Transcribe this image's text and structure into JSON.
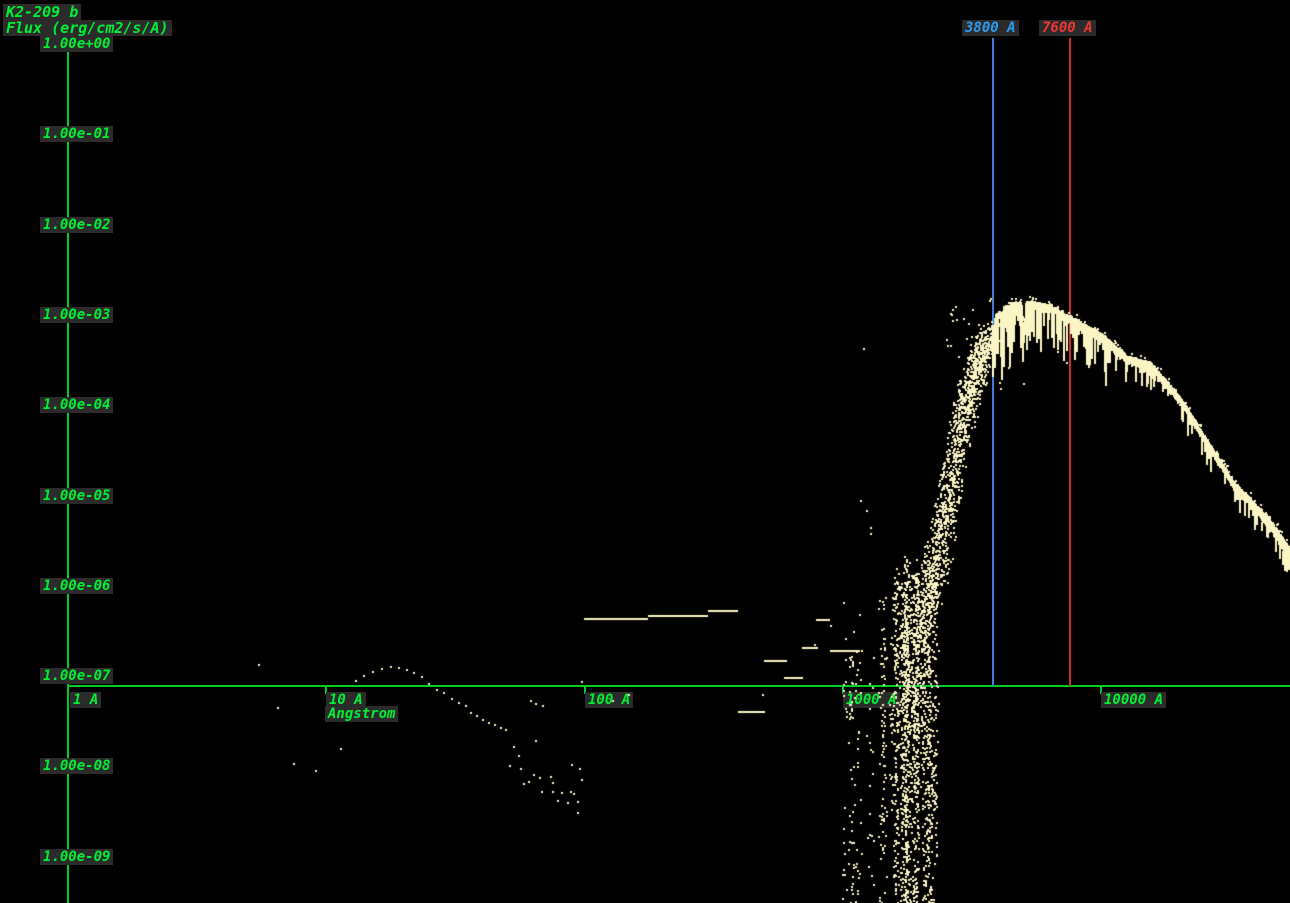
{
  "chart_data": {
    "type": "scatter",
    "title": "K2-209 b",
    "ylabel": "Flux (erg/cm2/s/A)",
    "xlabel": "Angstrom",
    "x_scale": "log",
    "y_scale": "log",
    "x_range_angstrom": [
      1,
      54000
    ],
    "y_range_flux": [
      1e-09,
      1.0
    ],
    "x_ticks": [
      {
        "label": "1 A",
        "value": 1
      },
      {
        "label": "10 A",
        "value": 10
      },
      {
        "label": "100 A",
        "value": 100
      },
      {
        "label": "1000 A",
        "value": 1000
      },
      {
        "label": "10000 A",
        "value": 10000
      }
    ],
    "y_ticks": [
      {
        "label": "1.00e+00",
        "value": 1.0
      },
      {
        "label": "1.00e-01",
        "value": 0.1
      },
      {
        "label": "1.00e-02",
        "value": 0.01
      },
      {
        "label": "1.00e-03",
        "value": 0.001
      },
      {
        "label": "1.00e-04",
        "value": 0.0001
      },
      {
        "label": "1.00e-05",
        "value": 1e-05
      },
      {
        "label": "1.00e-06",
        "value": 1e-06
      },
      {
        "label": "1.00e-07",
        "value": 1e-07
      },
      {
        "label": "1.00e-08",
        "value": 1e-08
      },
      {
        "label": "1.00e-09",
        "value": 1e-09
      }
    ],
    "markers": [
      {
        "label": "3800 A",
        "wavelength": 3800,
        "text_color": "#2d9bf0",
        "line_color": "#3b7fd8"
      },
      {
        "label": "7600 A",
        "wavelength": 7600,
        "text_color": "#ef3535",
        "line_color": "#cf2d2d"
      }
    ],
    "series": [
      {
        "name": "stellar continuum envelope",
        "style": "dense_band",
        "points": [
          [
            1760,
            7.4e-08
          ],
          [
            2010,
            5.3e-07
          ],
          [
            2190,
            1.7e-06
          ],
          [
            2560,
            1.2e-05
          ],
          [
            2870,
            8.2e-05
          ],
          [
            3290,
            0.0003
          ],
          [
            3680,
            0.00057
          ],
          [
            3940,
            0.00094
          ],
          [
            4500,
            0.00125
          ],
          [
            5390,
            0.0013
          ],
          [
            6330,
            0.00117
          ],
          [
            7600,
            0.00088
          ],
          [
            10000,
            0.00057
          ],
          [
            12700,
            0.00032
          ],
          [
            15600,
            0.00027
          ],
          [
            20400,
            0.00011
          ],
          [
            32700,
            1.3e-05
          ],
          [
            45200,
            5e-06
          ],
          [
            54400,
            2.3e-06
          ]
        ]
      },
      {
        "name": "uv line forest",
        "style": "vertical_scatter",
        "wavelength_range": [
          1120,
          2400
        ],
        "flux_range": [
          3e-10,
          2e-06
        ]
      },
      {
        "name": "xray euv points",
        "style": "dots",
        "points": [
          [
            5.5,
            1.26e-07
          ],
          [
            6.5,
            4.2e-08
          ],
          [
            7.5,
            1e-08
          ],
          [
            9.1,
            8.5e-09
          ],
          [
            11.4,
            1.48e-08
          ],
          [
            13.0,
            8.3e-08
          ],
          [
            14.0,
            9.6e-08
          ],
          [
            15.2,
            1.05e-07
          ],
          [
            16.4,
            1.15e-07
          ],
          [
            17.8,
            1.21e-07
          ],
          [
            19.1,
            1.18e-07
          ],
          [
            20.5,
            1.1e-07
          ],
          [
            21.9,
            1.03e-07
          ],
          [
            23.5,
            9.2e-08
          ],
          [
            25.0,
            7.8e-08
          ],
          [
            26.9,
            6.7e-08
          ],
          [
            28.5,
            6.1e-08
          ],
          [
            30.7,
            5.3e-08
          ],
          [
            32.6,
            4.8e-08
          ],
          [
            34.7,
            4.4e-08
          ],
          [
            36.2,
            3.7e-08
          ],
          [
            38.2,
            3.4e-08
          ],
          [
            40.3,
            3.1e-08
          ],
          [
            42.5,
            2.9e-08
          ],
          [
            44.8,
            2.7e-08
          ],
          [
            47.4,
            2.55e-08
          ],
          [
            49.6,
            2.4e-08
          ],
          [
            51.4,
            9.6e-09
          ],
          [
            53.3,
            1.55e-08
          ],
          [
            55.6,
            1.25e-08
          ],
          [
            56.6,
            8.9e-09
          ],
          [
            58.1,
            6.1e-09
          ],
          [
            60.8,
            6.4e-09
          ],
          [
            63.6,
            7.7e-09
          ],
          [
            64.7,
            1.8e-08
          ],
          [
            67.2,
            7e-09
          ],
          [
            68.5,
            4.9e-09
          ],
          [
            74.1,
            7.3e-09
          ],
          [
            75.6,
            6.2e-09
          ],
          [
            75.6,
            5e-09
          ],
          [
            78.9,
            3.9e-09
          ],
          [
            81.8,
            4.8e-09
          ],
          [
            86.1,
            3.7e-09
          ],
          [
            88.4,
            4.9e-09
          ],
          [
            89.2,
            9.9e-09
          ],
          [
            90.8,
            4.7e-09
          ],
          [
            93.9,
            3.8e-09
          ],
          [
            94.7,
            2.9e-09
          ],
          [
            96.4,
            8.9e-09
          ],
          [
            98.1,
            6.7e-09
          ],
          [
            62,
            5.1e-08
          ],
          [
            65,
            4.7e-08
          ],
          [
            69,
            4.4e-08
          ],
          [
            98,
            8.2e-08
          ],
          [
            129,
            5e-08
          ],
          [
            149,
            5.8e-08
          ],
          [
            492,
            5.9e-08
          ],
          [
            779,
            2.1e-07
          ],
          [
            897,
            3.4e-07
          ],
          [
            1175,
            8.3e-06
          ],
          [
            1240,
            6.4e-06
          ],
          [
            1280,
            4.2e-06
          ],
          [
            1285,
            3.6e-06
          ],
          [
            1208,
            0.0004
          ]
        ]
      },
      {
        "name": "binned flat segments",
        "style": "horizontal_segments",
        "segments": [
          [
            100,
            177,
            4.1e-07
          ],
          [
            177,
            303,
            4.4e-07
          ],
          [
            303,
            395,
            5e-07
          ],
          [
            395,
            505,
            3.8e-08
          ],
          [
            501,
            611,
            1.4e-07
          ],
          [
            599,
            709,
            9.1e-08
          ],
          [
            699,
            809,
            1.95e-07
          ],
          [
            796,
            896,
            4e-07
          ],
          [
            896,
            1172,
            1.8e-07
          ]
        ]
      }
    ],
    "colors": {
      "background": "#000000",
      "axis": "#00cd26",
      "tick_text": "#00ef34",
      "label_bg": "#2b2b2b",
      "points": "#fbf5c6"
    }
  }
}
